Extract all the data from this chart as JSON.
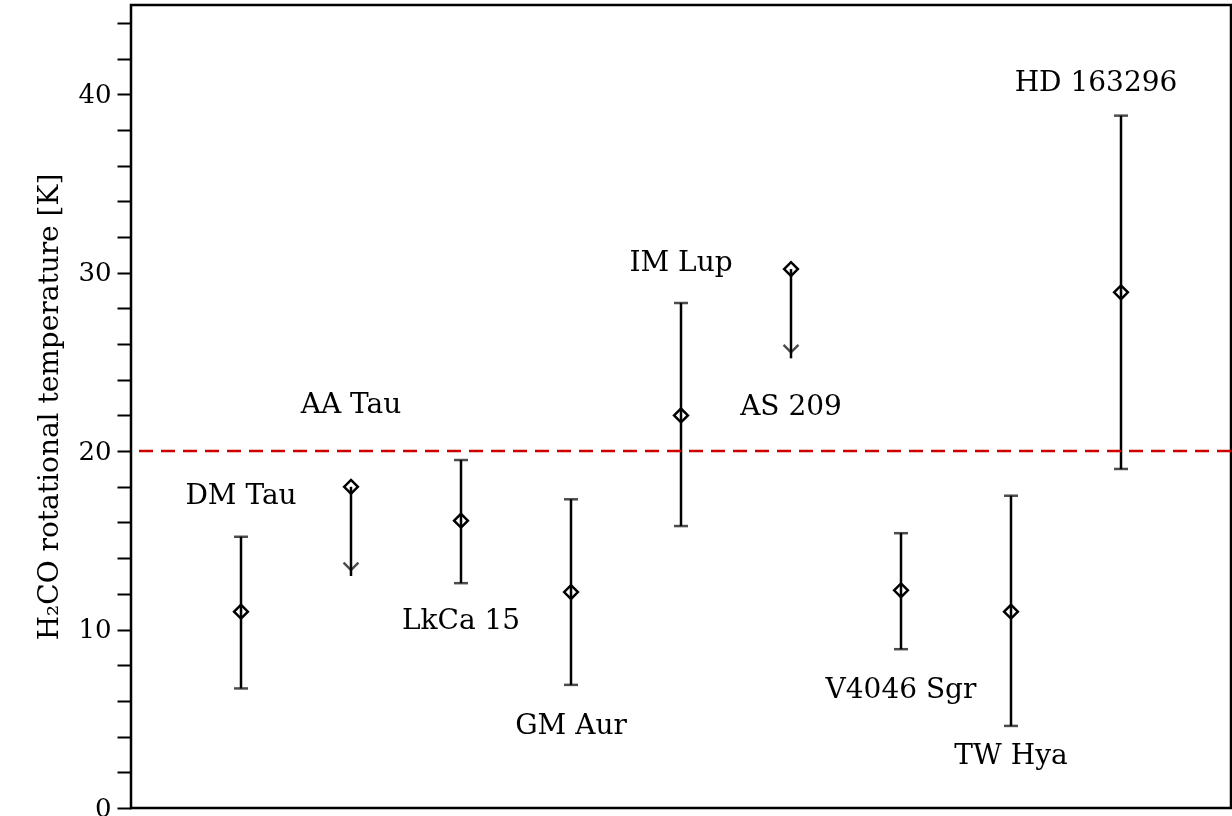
{
  "chart_data": {
    "type": "scatter",
    "ylabel": "H₂CO rotational temperature [K]",
    "categories": [
      "DM Tau",
      "AA Tau",
      "LkCa 15",
      "GM Aur",
      "IM Lup",
      "AS 209",
      "V4046 Sgr",
      "TW Hya",
      "HD 163296"
    ],
    "values": [
      11.0,
      18.0,
      16.1,
      12.1,
      22.0,
      30.2,
      12.2,
      11.0,
      28.9
    ],
    "errors": [
      [
        6.7,
        15.2
      ],
      [
        13.0,
        18.0
      ],
      [
        12.6,
        19.5
      ],
      [
        6.9,
        17.3
      ],
      [
        15.8,
        28.3
      ],
      [
        25.2,
        30.2
      ],
      [
        8.9,
        15.4
      ],
      [
        4.6,
        17.5
      ],
      [
        19.0,
        38.8
      ]
    ],
    "color": "#000000",
    "marker": "diamond",
    "tick_labels": "y",
    "ylim": [
      0,
      45
    ],
    "yticks": [
      0,
      {
        "value": 2,
        "label": null
      },
      {
        "value": 4,
        "label": null
      },
      {
        "value": 6,
        "label": null
      },
      {
        "value": 8,
        "label": null
      },
      10,
      {
        "value": 12,
        "label": null
      },
      {
        "value": 14,
        "label": null
      },
      {
        "value": 16,
        "label": null
      },
      {
        "value": 18,
        "label": null
      },
      20,
      {
        "value": 22,
        "label": null
      },
      {
        "value": 24,
        "label": null
      },
      {
        "value": 26,
        "label": null
      },
      {
        "value": 28,
        "label": null
      },
      30,
      {
        "value": 32,
        "label": null
      },
      {
        "value": 34,
        "label": null
      },
      {
        "value": 36,
        "label": null
      },
      {
        "value": 38,
        "label": null
      },
      40,
      {
        "value": 42,
        "label": null
      },
      {
        "value": 44,
        "label": null
      }
    ],
    "ref_lines": [
      {
        "axis": "y",
        "value": 20,
        "color": "#cc0000",
        "line_style": "dashed"
      }
    ]
  }
}
